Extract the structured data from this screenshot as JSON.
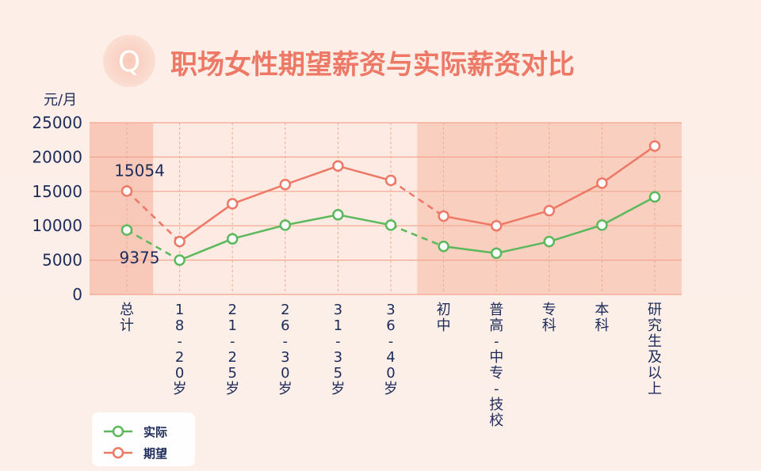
{
  "header": {
    "badge_letter": "Q",
    "title": "职场女性期望薪资与实际薪资对比"
  },
  "chart_data": {
    "type": "line",
    "title": "职场女性期望薪资与实际薪资对比",
    "ylabel": "元/月",
    "ylim": [
      0,
      25000
    ],
    "yticks": [
      0,
      5000,
      10000,
      15000,
      20000,
      25000
    ],
    "grid": true,
    "legend_position": "bottom-left",
    "categories": [
      "总计",
      "18-20岁",
      "21-25岁",
      "26-30岁",
      "31-35岁",
      "36-40岁",
      "初中",
      "普高-中专-技校",
      "专科",
      "本科",
      "研究生及以上"
    ],
    "category_labels": [
      [
        "总",
        "计"
      ],
      [
        "1",
        "8",
        "-",
        "2",
        "0",
        "岁"
      ],
      [
        "2",
        "1",
        "-",
        "2",
        "5",
        "岁"
      ],
      [
        "2",
        "6",
        "-",
        "3",
        "0",
        "岁"
      ],
      [
        "3",
        "1",
        "-",
        "3",
        "5",
        "岁"
      ],
      [
        "3",
        "6",
        "-",
        "4",
        "0",
        "岁"
      ],
      [
        "初",
        "中"
      ],
      [
        "普",
        "高",
        "-",
        "中",
        "专",
        "-",
        "技",
        "校"
      ],
      [
        "专",
        "科"
      ],
      [
        "本",
        "科"
      ],
      [
        "研",
        "究",
        "生",
        "及",
        "以",
        "上"
      ]
    ],
    "segments": [
      [
        0,
        0
      ],
      [
        1,
        5
      ],
      [
        6,
        10
      ]
    ],
    "series": [
      {
        "name": "实际",
        "color": "#5cb85c",
        "values": [
          9375,
          5000,
          8100,
          10100,
          11600,
          10100,
          7000,
          6000,
          7700,
          10100,
          14200
        ]
      },
      {
        "name": "期望",
        "color": "#ee7866",
        "values": [
          15054,
          7700,
          13200,
          16000,
          18700,
          16600,
          11400,
          10000,
          12200,
          16200,
          21600
        ]
      }
    ],
    "data_labels": [
      {
        "series": 1,
        "index": 0,
        "text": "15054",
        "placement": "above"
      },
      {
        "series": 0,
        "index": 0,
        "text": "9375",
        "placement": "below"
      }
    ]
  }
}
